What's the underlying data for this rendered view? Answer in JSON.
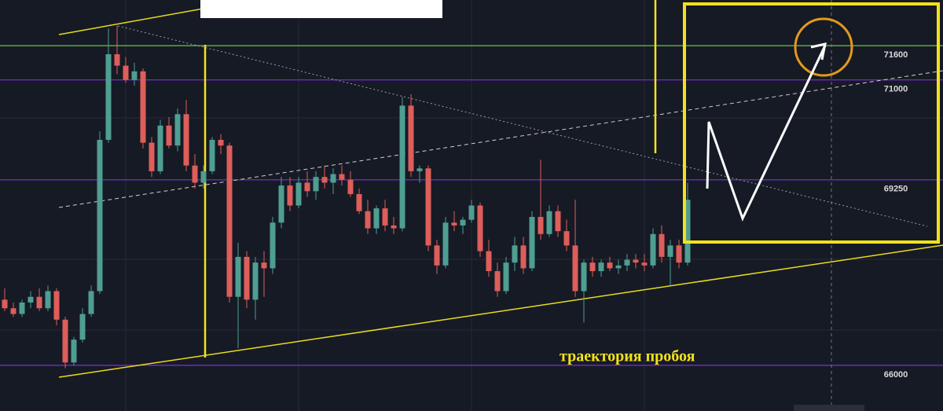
{
  "chart_data": {
    "type": "candlestick",
    "annotation": "траектория пробоя",
    "ylim": [
      65200,
      72400
    ],
    "yticks": [
      66000,
      69250,
      71000,
      71600
    ],
    "ytick_colors": [
      "#7b2fd6",
      "#7b2fd6",
      "#7b2fd6",
      "#6fc24a"
    ],
    "up_color": "#4f9e92",
    "down_color": "#dd5e5a",
    "candles": [
      [
        67150,
        67350,
        66950,
        67000
      ],
      [
        67000,
        67100,
        66850,
        66900
      ],
      [
        66900,
        67150,
        66850,
        67100
      ],
      [
        67100,
        67300,
        67000,
        67200
      ],
      [
        67200,
        67350,
        66950,
        67000
      ],
      [
        67000,
        67400,
        66950,
        67300
      ],
      [
        67300,
        67350,
        66700,
        66800
      ],
      [
        66800,
        66850,
        65950,
        66050
      ],
      [
        66050,
        66500,
        66000,
        66450
      ],
      [
        66450,
        67000,
        66400,
        66900
      ],
      [
        66900,
        67400,
        66850,
        67300
      ],
      [
        67300,
        70100,
        67250,
        69950
      ],
      [
        69950,
        71900,
        69900,
        71450
      ],
      [
        71450,
        71950,
        71100,
        71250
      ],
      [
        71250,
        71400,
        70950,
        71000
      ],
      [
        71000,
        71300,
        70900,
        71150
      ],
      [
        71150,
        71200,
        69800,
        69900
      ],
      [
        69900,
        70000,
        69300,
        69400
      ],
      [
        69400,
        70300,
        69350,
        70200
      ],
      [
        70200,
        70350,
        69800,
        69850
      ],
      [
        69850,
        70500,
        69750,
        70400
      ],
      [
        70400,
        70650,
        69400,
        69500
      ],
      [
        69500,
        69700,
        69100,
        69200
      ],
      [
        69200,
        69500,
        69100,
        69400
      ],
      [
        69400,
        70000,
        69350,
        69950
      ],
      [
        69950,
        70050,
        69700,
        69850
      ],
      [
        69850,
        69900,
        67100,
        67200
      ],
      [
        67200,
        68150,
        66300,
        67900
      ],
      [
        67900,
        68000,
        67000,
        67150
      ],
      [
        67150,
        67900,
        66800,
        67800
      ],
      [
        67800,
        68000,
        67200,
        67700
      ],
      [
        67700,
        68600,
        67600,
        68500
      ],
      [
        68500,
        69300,
        68400,
        69150
      ],
      [
        69150,
        69300,
        68700,
        68800
      ],
      [
        68800,
        69300,
        68750,
        69200
      ],
      [
        69200,
        69400,
        68950,
        69050
      ],
      [
        69050,
        69400,
        68900,
        69300
      ],
      [
        69300,
        69500,
        69100,
        69200
      ],
      [
        69200,
        69450,
        69000,
        69350
      ],
      [
        69350,
        69500,
        69150,
        69250
      ],
      [
        69250,
        69400,
        68950,
        69000
      ],
      [
        69000,
        69100,
        68650,
        68700
      ],
      [
        68700,
        68900,
        68300,
        68400
      ],
      [
        68400,
        68800,
        68300,
        68750
      ],
      [
        68750,
        68900,
        68350,
        68450
      ],
      [
        68450,
        68600,
        68300,
        68400
      ],
      [
        68400,
        70700,
        68350,
        70550
      ],
      [
        70550,
        70750,
        69300,
        69400
      ],
      [
        69400,
        69500,
        69200,
        69450
      ],
      [
        69450,
        69500,
        68000,
        68100
      ],
      [
        68100,
        68200,
        67600,
        67750
      ],
      [
        67750,
        68600,
        67700,
        68500
      ],
      [
        68500,
        68700,
        68350,
        68450
      ],
      [
        68450,
        68600,
        68300,
        68550
      ],
      [
        68550,
        68900,
        68500,
        68800
      ],
      [
        68800,
        68850,
        67900,
        68000
      ],
      [
        68000,
        68200,
        67550,
        67650
      ],
      [
        67650,
        67800,
        67200,
        67300
      ],
      [
        67300,
        67900,
        67250,
        67800
      ],
      [
        67800,
        68250,
        67650,
        68100
      ],
      [
        68100,
        68250,
        67600,
        67700
      ],
      [
        67700,
        68700,
        67650,
        68600
      ],
      [
        68600,
        69600,
        68200,
        68300
      ],
      [
        68300,
        68800,
        68250,
        68700
      ],
      [
        68700,
        68800,
        68250,
        68350
      ],
      [
        68350,
        68550,
        68000,
        68100
      ],
      [
        68100,
        68900,
        67200,
        67300
      ],
      [
        67300,
        67850,
        66750,
        67800
      ],
      [
        67800,
        67900,
        67550,
        67650
      ],
      [
        67650,
        67850,
        67550,
        67800
      ],
      [
        67800,
        67900,
        67650,
        67700
      ],
      [
        67700,
        67850,
        67600,
        67750
      ],
      [
        67750,
        67950,
        67650,
        67850
      ],
      [
        67850,
        67950,
        67700,
        67800
      ],
      [
        67800,
        67950,
        67650,
        67750
      ],
      [
        67750,
        68400,
        67700,
        68300
      ],
      [
        68300,
        68450,
        67800,
        67900
      ],
      [
        67900,
        68200,
        67400,
        68100
      ],
      [
        68100,
        68200,
        67700,
        67800
      ],
      [
        67800,
        69200,
        67750,
        68900
      ]
    ]
  }
}
